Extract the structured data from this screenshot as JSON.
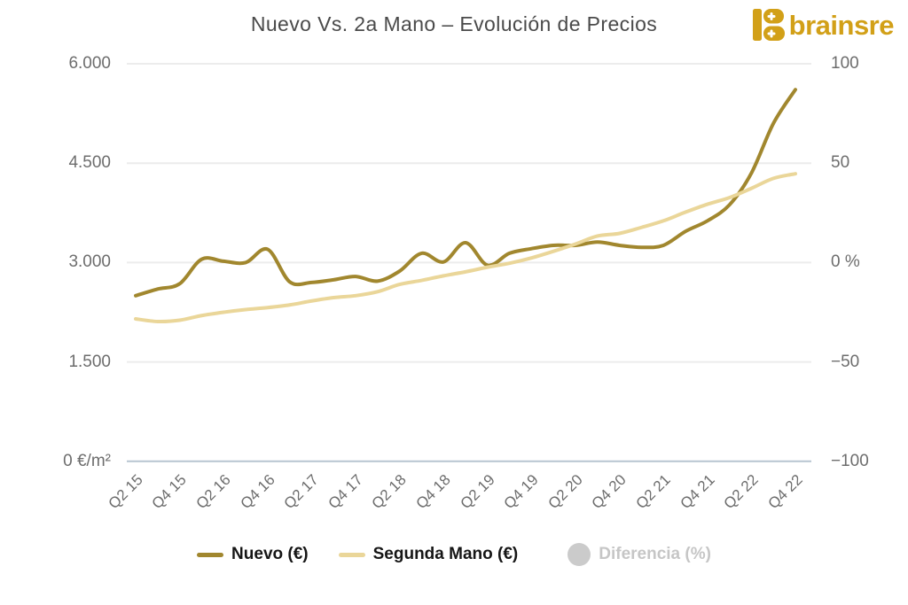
{
  "logo": {
    "text": "brainsre",
    "color": "#d2a018",
    "icon": "brainsre-b-icon"
  },
  "chart": {
    "title": "Nuevo Vs. 2a Mano – Evolución de Precios"
  },
  "chart_data": {
    "type": "line",
    "title": "Nuevo Vs. 2a Mano – Evolución de Precios",
    "x": [
      "Q2 15",
      "Q3 15",
      "Q4 15",
      "Q1 16",
      "Q2 16",
      "Q3 16",
      "Q4 16",
      "Q1 17",
      "Q2 17",
      "Q3 17",
      "Q4 17",
      "Q1 18",
      "Q2 18",
      "Q3 18",
      "Q4 18",
      "Q1 19",
      "Q2 19",
      "Q3 19",
      "Q4 19",
      "Q1 20",
      "Q2 20",
      "Q3 20",
      "Q4 20",
      "Q1 21",
      "Q2 21",
      "Q3 21",
      "Q4 21",
      "Q1 22",
      "Q2 22",
      "Q3 22",
      "Q4 22"
    ],
    "x_tick_labels": [
      "Q2 15",
      "Q4 15",
      "Q2 16",
      "Q4 16",
      "Q2 17",
      "Q4 17",
      "Q2 18",
      "Q4 18",
      "Q2 19",
      "Q4 19",
      "Q2 20",
      "Q4 20",
      "Q2 21",
      "Q4 21",
      "Q2 22",
      "Q4 22"
    ],
    "series": [
      {
        "name": "Nuevo (€)",
        "color": "#a1872e",
        "axis": "left",
        "visible": true,
        "values": [
          2500,
          2600,
          2680,
          3050,
          3020,
          3000,
          3200,
          2710,
          2700,
          2740,
          2790,
          2720,
          2870,
          3140,
          3010,
          3300,
          2960,
          3140,
          3210,
          3260,
          3260,
          3310,
          3260,
          3230,
          3260,
          3470,
          3630,
          3870,
          4350,
          5100,
          5610
        ]
      },
      {
        "name": "Segunda Mano (€)",
        "color": "#ead699",
        "axis": "left",
        "visible": true,
        "values": [
          2150,
          2110,
          2130,
          2200,
          2250,
          2290,
          2320,
          2360,
          2420,
          2470,
          2500,
          2560,
          2670,
          2730,
          2800,
          2860,
          2930,
          2990,
          3070,
          3170,
          3280,
          3400,
          3440,
          3530,
          3630,
          3760,
          3880,
          3980,
          4120,
          4270,
          4340
        ]
      },
      {
        "name": "Diferencia (%)",
        "color": "#cbcbcb",
        "axis": "right",
        "visible": false,
        "values": []
      }
    ],
    "y_axis_left": {
      "ticks": [
        0,
        1500,
        3000,
        4500,
        6000
      ],
      "labels": [
        "0 €/m²",
        "1.500",
        "3.000",
        "4.500",
        "6.000"
      ],
      "range": [
        0,
        6000
      ]
    },
    "y_axis_right": {
      "ticks": [
        -100,
        -50,
        0,
        50,
        100
      ],
      "labels": [
        "−100",
        "−50",
        "0 %",
        "50",
        "100"
      ],
      "range": [
        -100,
        100
      ]
    },
    "grid": true,
    "legend_position": "bottom"
  },
  "legend": {
    "items": [
      {
        "label": "Nuevo (€)",
        "color": "#a1872e",
        "marker": "line",
        "enabled": true
      },
      {
        "label": "Segunda Mano (€)",
        "color": "#ead699",
        "marker": "line",
        "enabled": true
      },
      {
        "label": "Diferencia (%)",
        "color": "#cbcbcb",
        "marker": "circle",
        "enabled": false
      }
    ]
  },
  "colors": {
    "background": "#ffffff",
    "title_text": "#4a4a4a",
    "axis_text": "#6d6d6d",
    "gridline": "#ececec",
    "zero_line": "#b7c5d1",
    "brand_gold": "#d2a018",
    "series_nuevo": "#a1872e",
    "series_segunda_mano": "#ead699",
    "disabled_gray": "#c6c6c6"
  }
}
